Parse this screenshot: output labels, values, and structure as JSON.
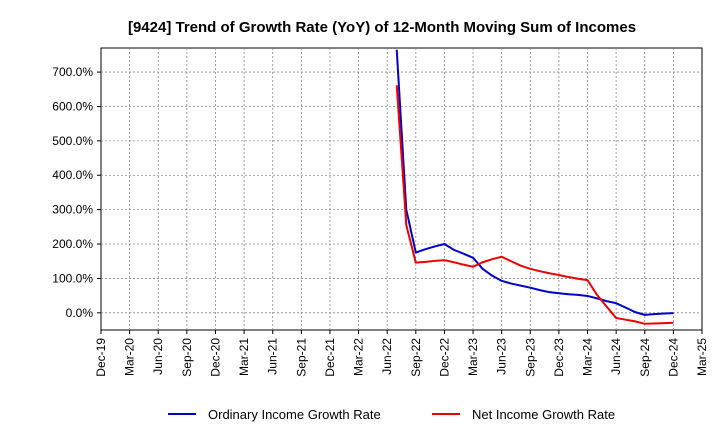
{
  "chart_data": {
    "type": "line",
    "title": "[9424]  Trend of Growth Rate (YoY) of 12-Month Moving Sum of Incomes",
    "xlabel": "",
    "ylabel": "",
    "x_ticks": [
      "Dec-19",
      "Mar-20",
      "Jun-20",
      "Sep-20",
      "Dec-20",
      "Mar-21",
      "Jun-21",
      "Sep-21",
      "Dec-21",
      "Mar-22",
      "Jun-22",
      "Sep-22",
      "Dec-22",
      "Mar-23",
      "Jun-23",
      "Sep-23",
      "Dec-23",
      "Mar-24",
      "Jun-24",
      "Sep-24",
      "Dec-24",
      "Mar-25"
    ],
    "y_ticks": [
      "0.0%",
      "100.0%",
      "200.0%",
      "300.0%",
      "400.0%",
      "500.0%",
      "600.0%",
      "700.0%"
    ],
    "y_tick_values": [
      0,
      100,
      200,
      300,
      400,
      500,
      600,
      700
    ],
    "ylim": [
      -50,
      770
    ],
    "grid": true,
    "legend_position": "bottom",
    "series": [
      {
        "name": "Ordinary Income Growth Rate",
        "color": "#0000cc",
        "points": [
          [
            "2022-07",
            765
          ],
          [
            "2022-08",
            300
          ],
          [
            "2022-09",
            175
          ],
          [
            "2022-10",
            185
          ],
          [
            "2022-11",
            193
          ],
          [
            "2022-12",
            200
          ],
          [
            "2023-01",
            183
          ],
          [
            "2023-02",
            172
          ],
          [
            "2023-03",
            160
          ],
          [
            "2023-04",
            128
          ],
          [
            "2023-05",
            108
          ],
          [
            "2023-06",
            93
          ],
          [
            "2023-07",
            85
          ],
          [
            "2023-08",
            79
          ],
          [
            "2023-09",
            73
          ],
          [
            "2023-10",
            66
          ],
          [
            "2023-11",
            60
          ],
          [
            "2023-12",
            57
          ],
          [
            "2024-01",
            54
          ],
          [
            "2024-02",
            52
          ],
          [
            "2024-03",
            49
          ],
          [
            "2024-04",
            42
          ],
          [
            "2024-05",
            34
          ],
          [
            "2024-06",
            28
          ],
          [
            "2024-07",
            15
          ],
          [
            "2024-08",
            2
          ],
          [
            "2024-09",
            -6
          ],
          [
            "2024-10",
            -4
          ],
          [
            "2024-11",
            -2
          ],
          [
            "2024-12",
            -1
          ]
        ]
      },
      {
        "name": "Net Income Growth Rate",
        "color": "#ee0000",
        "points": [
          [
            "2022-07",
            662
          ],
          [
            "2022-08",
            255
          ],
          [
            "2022-09",
            146
          ],
          [
            "2022-10",
            148
          ],
          [
            "2022-11",
            151
          ],
          [
            "2022-12",
            153
          ],
          [
            "2023-01",
            147
          ],
          [
            "2023-02",
            140
          ],
          [
            "2023-03",
            134
          ],
          [
            "2023-04",
            147
          ],
          [
            "2023-05",
            156
          ],
          [
            "2023-06",
            163
          ],
          [
            "2023-07",
            150
          ],
          [
            "2023-08",
            137
          ],
          [
            "2023-09",
            128
          ],
          [
            "2023-10",
            121
          ],
          [
            "2023-11",
            115
          ],
          [
            "2023-12",
            110
          ],
          [
            "2024-01",
            104
          ],
          [
            "2024-02",
            99
          ],
          [
            "2024-03",
            95
          ],
          [
            "2024-04",
            52
          ],
          [
            "2024-05",
            18
          ],
          [
            "2024-06",
            -15
          ],
          [
            "2024-07",
            -20
          ],
          [
            "2024-08",
            -25
          ],
          [
            "2024-09",
            -32
          ],
          [
            "2024-10",
            -31
          ],
          [
            "2024-11",
            -30
          ],
          [
            "2024-12",
            -29
          ]
        ]
      }
    ]
  }
}
